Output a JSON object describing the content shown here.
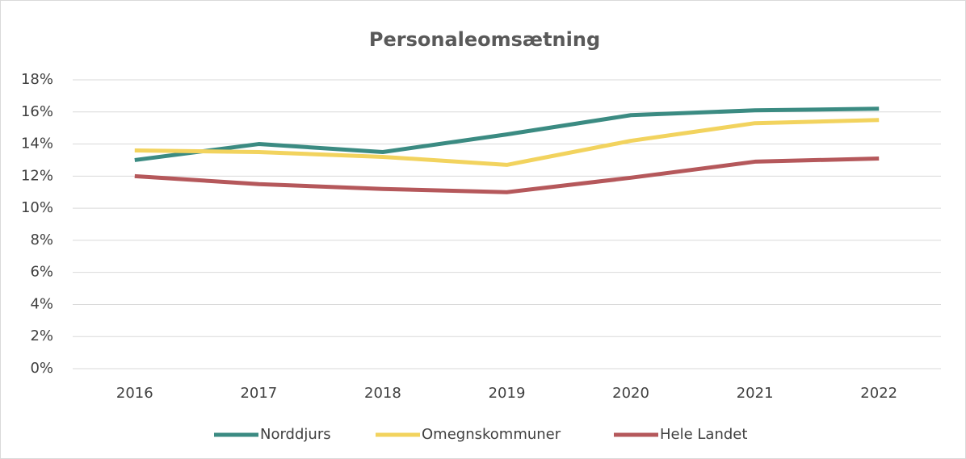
{
  "chart_data": {
    "type": "line",
    "title": "Personaleomsætning",
    "categories": [
      "2016",
      "2017",
      "2018",
      "2019",
      "2020",
      "2021",
      "2022"
    ],
    "series": [
      {
        "name": "Norddjurs",
        "color": "#3b8b82",
        "values": [
          13.0,
          14.0,
          13.5,
          14.6,
          15.8,
          16.1,
          16.2
        ]
      },
      {
        "name": "Omegnskommuner",
        "color": "#f2d35e",
        "values": [
          13.6,
          13.5,
          13.2,
          12.7,
          14.2,
          15.3,
          15.5
        ]
      },
      {
        "name": "Hele Landet",
        "color": "#b5585b",
        "values": [
          12.0,
          11.5,
          11.2,
          11.0,
          11.9,
          12.9,
          13.1
        ]
      }
    ],
    "ylim": [
      0,
      18
    ],
    "yticks": [
      {
        "value": 0,
        "label": "0%"
      },
      {
        "value": 2,
        "label": "2%"
      },
      {
        "value": 4,
        "label": "4%"
      },
      {
        "value": 6,
        "label": "6%"
      },
      {
        "value": 8,
        "label": "8%"
      },
      {
        "value": 10,
        "label": "10%"
      },
      {
        "value": 12,
        "label": "12%"
      },
      {
        "value": 14,
        "label": "14%"
      },
      {
        "value": 16,
        "label": "16%"
      },
      {
        "value": 18,
        "label": "18%"
      }
    ],
    "grid": true,
    "legend": "bottom"
  }
}
